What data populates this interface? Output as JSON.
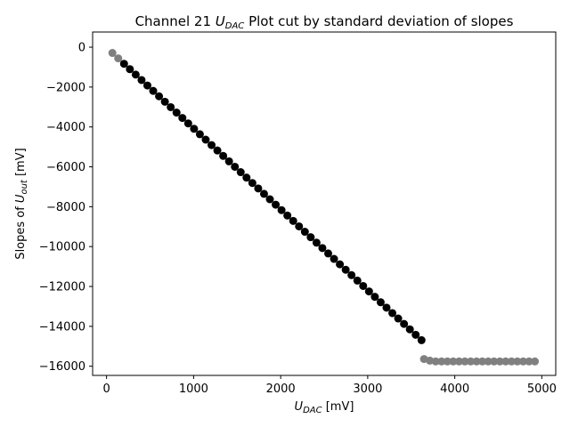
{
  "chart_data": {
    "type": "scatter",
    "title": "Channel 21 U_DAC Plot cut by standard deviation of slopes",
    "title_parts": {
      "pre": "Channel 21 ",
      "var": "U",
      "sub": "DAC",
      "post": " Plot cut by standard deviation of slopes"
    },
    "xlabel": "U_DAC [mV]",
    "xlabel_parts": {
      "var": "U",
      "sub": "DAC",
      "post": " [mV]"
    },
    "ylabel": "Slopes of U_out [mV]",
    "ylabel_parts": {
      "pre": "Slopes of ",
      "var": "U",
      "sub": "out",
      "post": " [mV]"
    },
    "xlim": [
      -160,
      5160
    ],
    "ylim": [
      -16460,
      760
    ],
    "xticks": [
      0,
      1000,
      2000,
      3000,
      4000,
      5000
    ],
    "xtick_labels": [
      "0",
      "1000",
      "2000",
      "3000",
      "4000",
      "5000"
    ],
    "yticks": [
      0,
      -2000,
      -4000,
      -6000,
      -8000,
      -10000,
      -12000,
      -14000,
      -16000
    ],
    "ytick_labels": [
      "0",
      "−2000",
      "−4000",
      "−6000",
      "−8000",
      "−10000",
      "−12000",
      "−14000",
      "−16000"
    ],
    "grid": false,
    "colors": {
      "kept": "#000000",
      "cut": "#808080"
    },
    "series": [
      {
        "role": "cut",
        "color": "#808080",
        "x": [
          67,
          134,
          3647,
          3714,
          3781,
          3848,
          3915,
          3982,
          4049,
          4116,
          4183,
          4250,
          4317,
          4384,
          4451,
          4518,
          4585,
          4652,
          4719,
          4786,
          4853,
          4920
        ],
        "y": [
          -290,
          -560,
          -15640,
          -15720,
          -15760,
          -15760,
          -15760,
          -15760,
          -15760,
          -15760,
          -15760,
          -15760,
          -15760,
          -15760,
          -15760,
          -15760,
          -15760,
          -15760,
          -15760,
          -15760,
          -15760,
          -15760
        ]
      },
      {
        "role": "kept",
        "color": "#000000",
        "x": [
          201,
          268,
          335,
          402,
          469,
          536,
          603,
          670,
          737,
          804,
          871,
          938,
          1005,
          1072,
          1139,
          1206,
          1273,
          1340,
          1407,
          1474,
          1541,
          1608,
          1675,
          1742,
          1809,
          1876,
          1943,
          2010,
          2077,
          2144,
          2211,
          2278,
          2345,
          2412,
          2479,
          2546,
          2613,
          2680,
          2747,
          2814,
          2881,
          2948,
          3015,
          3082,
          3149,
          3216,
          3283,
          3350,
          3417,
          3484,
          3551,
          3618
        ],
        "y": [
          -833,
          -1104,
          -1376,
          -1648,
          -1920,
          -2192,
          -2463,
          -2735,
          -3007,
          -3279,
          -3550,
          -3822,
          -4094,
          -4366,
          -4638,
          -4909,
          -5181,
          -5453,
          -5725,
          -5997,
          -6268,
          -6540,
          -6812,
          -7084,
          -7355,
          -7627,
          -7899,
          -8171,
          -8443,
          -8714,
          -8986,
          -9258,
          -9530,
          -9802,
          -10073,
          -10345,
          -10617,
          -10889,
          -11160,
          -11432,
          -11704,
          -11976,
          -12248,
          -12519,
          -12791,
          -13063,
          -13335,
          -13607,
          -13878,
          -14150,
          -14422,
          -14694
        ]
      }
    ]
  }
}
